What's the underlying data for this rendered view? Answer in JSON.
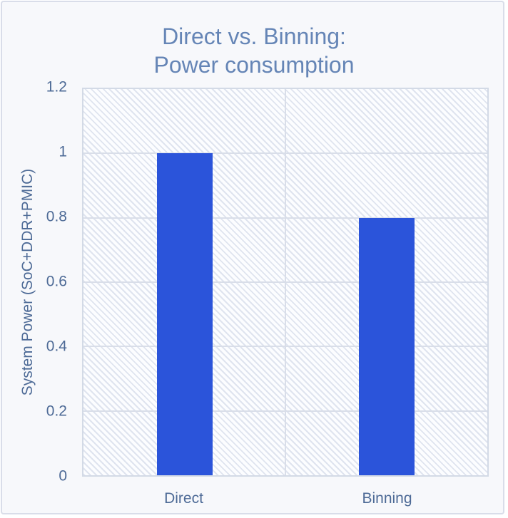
{
  "window": {
    "background": "#f7f8fb",
    "border_color": "#d9dde9"
  },
  "chart_data": {
    "type": "bar",
    "title": "Direct vs. Binning: Power consumption",
    "title_lines": [
      "Direct vs. Binning:",
      "Power consumption"
    ],
    "categories": [
      "Direct",
      "Binning"
    ],
    "values": [
      1.0,
      0.8
    ],
    "xlabel": "",
    "ylabel": "System Power (SoC+DDR+PMIC)",
    "ylim": [
      0,
      1.2
    ],
    "yticks": [
      0,
      0.2,
      0.4,
      0.6,
      0.8,
      1,
      1.2
    ],
    "ytick_labels": [
      "0",
      "0.2",
      "0.4",
      "0.6",
      "0.8",
      "1",
      "1.2"
    ],
    "grid": true,
    "legend": false,
    "colors": {
      "bar": "#2b54da",
      "title_text": "#6585b6",
      "axis_text": "#4d6a96",
      "gridline": "#d9dee9",
      "plot_border": "#d3dae6",
      "plot_background": "#fcfdff",
      "hatch": "#dfe4ef"
    }
  }
}
